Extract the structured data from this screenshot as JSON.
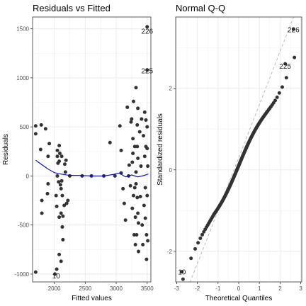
{
  "chart_data": [
    {
      "type": "scatter",
      "title": "Residuals vs Fitted",
      "xlabel": "Fitted values",
      "ylabel": "Residuals",
      "xlim": [
        1650,
        3560
      ],
      "ylim": [
        -1080,
        1620
      ],
      "xticks": [
        2000,
        2500,
        3000,
        3500
      ],
      "yticks": [
        -1000,
        -500,
        0,
        500,
        1000,
        1500
      ],
      "xminor": [
        1750,
        2250,
        2750,
        3250
      ],
      "yminor": [
        -750,
        -250,
        250,
        750,
        1250
      ],
      "grid": true,
      "point_color": "#333333",
      "smooth_color": "#0000cc",
      "points": [
        [
          1700,
          510
        ],
        [
          1700,
          430
        ],
        [
          1700,
          -980
        ],
        [
          1780,
          270
        ],
        [
          1790,
          520
        ],
        [
          1800,
          -380
        ],
        [
          1800,
          -250
        ],
        [
          1860,
          480
        ],
        [
          1890,
          -180
        ],
        [
          1900,
          -80
        ],
        [
          1900,
          200
        ],
        [
          1920,
          330
        ],
        [
          2010,
          -1000
        ],
        [
          2030,
          -200
        ],
        [
          2040,
          -310
        ],
        [
          2040,
          -950
        ],
        [
          2050,
          260
        ],
        [
          2050,
          200
        ],
        [
          2050,
          0
        ],
        [
          2060,
          130
        ],
        [
          2070,
          -60
        ],
        [
          2080,
          150
        ],
        [
          2080,
          310
        ],
        [
          2080,
          -420
        ],
        [
          2080,
          -800
        ],
        [
          2090,
          230
        ],
        [
          2100,
          -90
        ],
        [
          2110,
          -130
        ],
        [
          2110,
          -380
        ],
        [
          2110,
          -870
        ],
        [
          2120,
          200
        ],
        [
          2120,
          -50
        ],
        [
          2130,
          -200
        ],
        [
          2130,
          -520
        ],
        [
          2140,
          -410
        ],
        [
          2140,
          -650
        ],
        [
          2160,
          -300
        ],
        [
          2170,
          120
        ],
        [
          2180,
          40
        ],
        [
          2190,
          160
        ],
        [
          2200,
          -280
        ],
        [
          2220,
          -250
        ],
        [
          2250,
          0
        ],
        [
          2450,
          0
        ],
        [
          2600,
          0
        ],
        [
          2800,
          0
        ],
        [
          2900,
          340
        ],
        [
          2980,
          0
        ],
        [
          3060,
          510
        ],
        [
          3080,
          260
        ],
        [
          3080,
          30
        ],
        [
          3110,
          -130
        ],
        [
          3130,
          -280
        ],
        [
          3150,
          -450
        ],
        [
          3180,
          700
        ],
        [
          3200,
          0
        ],
        [
          3210,
          110
        ],
        [
          3230,
          -100
        ],
        [
          3240,
          550
        ],
        [
          3250,
          580
        ],
        [
          3260,
          140
        ],
        [
          3260,
          -330
        ],
        [
          3270,
          380
        ],
        [
          3270,
          230
        ],
        [
          3280,
          760
        ],
        [
          3280,
          -200
        ],
        [
          3290,
          -600
        ],
        [
          3300,
          300
        ],
        [
          3300,
          -120
        ],
        [
          3310,
          -420
        ],
        [
          3310,
          -700
        ],
        [
          3320,
          900
        ],
        [
          3320,
          40
        ],
        [
          3320,
          -80
        ],
        [
          3330,
          -600
        ],
        [
          3340,
          520
        ],
        [
          3340,
          300
        ],
        [
          3340,
          -220
        ],
        [
          3350,
          690
        ],
        [
          3350,
          180
        ],
        [
          3350,
          -380
        ],
        [
          3360,
          -480
        ],
        [
          3360,
          -770
        ],
        [
          3380,
          450
        ],
        [
          3390,
          -210
        ],
        [
          3400,
          100
        ],
        [
          3410,
          580
        ],
        [
          3420,
          -500
        ],
        [
          3430,
          -700
        ],
        [
          3440,
          410
        ],
        [
          3450,
          -300
        ],
        [
          3460,
          650
        ],
        [
          3460,
          200
        ],
        [
          3470,
          -120
        ],
        [
          3470,
          -430
        ],
        [
          3480,
          570
        ],
        [
          3480,
          300
        ],
        [
          3490,
          -600
        ],
        [
          3490,
          -850
        ],
        [
          3500,
          500
        ],
        [
          3500,
          280
        ],
        [
          3500,
          -200
        ],
        [
          3510,
          -660
        ],
        [
          3510,
          100
        ],
        [
          3500,
          1520
        ],
        [
          3500,
          1080
        ]
      ],
      "labels": [
        {
          "text": "226",
          "x": 3500,
          "y": 1480
        },
        {
          "text": "225",
          "x": 3500,
          "y": 1075
        },
        {
          "text": "10",
          "x": 2030,
          "y": -1015
        }
      ],
      "smooth": [
        [
          1700,
          160
        ],
        [
          1800,
          115
        ],
        [
          1900,
          70
        ],
        [
          2000,
          35
        ],
        [
          2100,
          20
        ],
        [
          2200,
          10
        ],
        [
          2300,
          5
        ],
        [
          2400,
          5
        ],
        [
          2600,
          0
        ],
        [
          2800,
          0
        ],
        [
          2950,
          15
        ],
        [
          3050,
          30
        ],
        [
          3150,
          -10
        ],
        [
          3250,
          10
        ],
        [
          3350,
          -10
        ],
        [
          3450,
          5
        ],
        [
          3520,
          20
        ]
      ]
    },
    {
      "type": "scatter",
      "title": "Normal Q-Q",
      "xlabel": "Theoretical Quantiles",
      "ylabel": "Standardized residuals",
      "xlim": [
        -3.05,
        3.05
      ],
      "ylim": [
        -2.75,
        3.75
      ],
      "xticks": [
        -3,
        -2,
        -1,
        0,
        1,
        2,
        3
      ],
      "yticks": [
        -2,
        0,
        2
      ],
      "xminor": [
        -2.5,
        -1.5,
        -0.5,
        0.5,
        1.5,
        2.5
      ],
      "yminor": [
        -1,
        1,
        3
      ],
      "grid": true,
      "point_color": "#333333",
      "reference_line": {
        "slope": 1.3,
        "intercept": 0.3
      },
      "n_points": 142,
      "labels": [
        {
          "text": "226",
          "x": 2.65,
          "y": 3.45
        },
        {
          "text": "225",
          "x": 2.25,
          "y": 2.55
        },
        {
          "text": "10",
          "x": -2.75,
          "y": -2.5
        }
      ],
      "highlight": [
        {
          "x": 2.65,
          "y": 3.45
        },
        {
          "x": 2.25,
          "y": 2.6
        },
        {
          "x": -2.75,
          "y": -2.5
        }
      ]
    }
  ]
}
